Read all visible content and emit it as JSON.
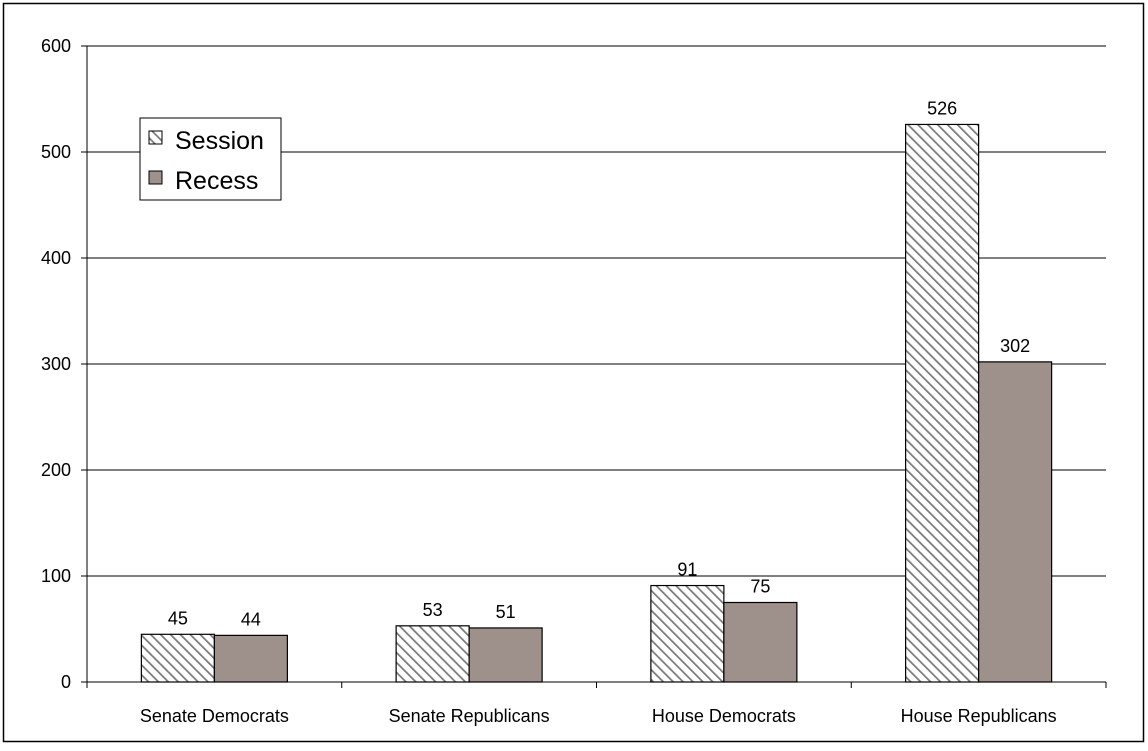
{
  "chart_data": {
    "type": "bar",
    "title": "",
    "xlabel": "",
    "ylabel": "",
    "categories": [
      "Senate Democrats",
      "Senate Republicans",
      "House Democrats",
      "House Republicans"
    ],
    "series": [
      {
        "name": "Session",
        "values": [
          45,
          53,
          91,
          526
        ],
        "color": "#c8c8c8",
        "pattern": "diagonal-hatch"
      },
      {
        "name": "Recess",
        "values": [
          44,
          51,
          75,
          302
        ],
        "color": "#9e918b",
        "pattern": "solid"
      }
    ],
    "ylim": [
      0,
      600
    ],
    "yticks": [
      "0",
      "100",
      "200",
      "300",
      "400",
      "500",
      "600"
    ],
    "grid": true,
    "legend_placement": "top-left",
    "data_labels": true
  }
}
